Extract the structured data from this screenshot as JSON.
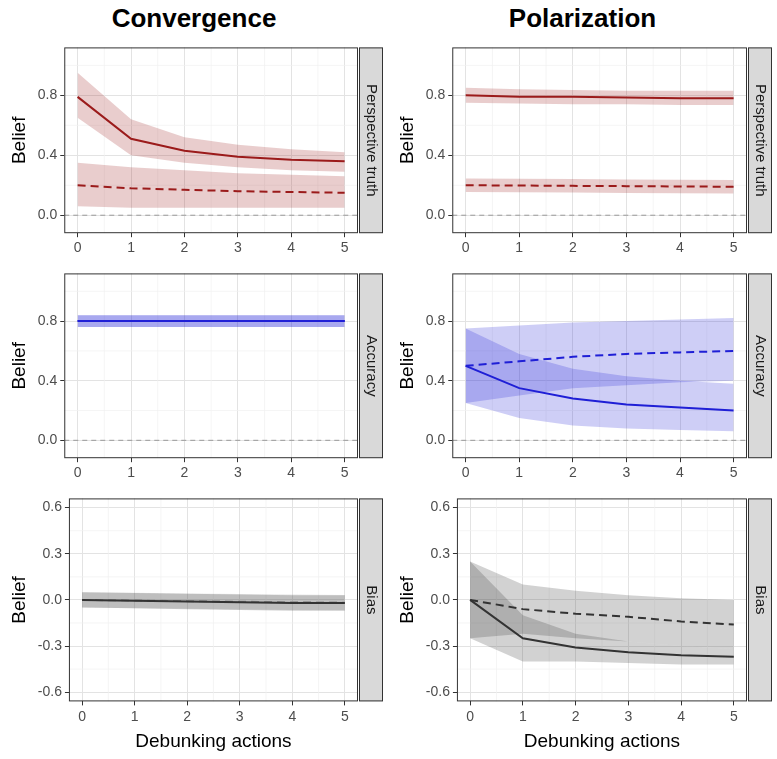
{
  "chart_data": [
    {
      "type": "line",
      "title": "Convergence",
      "strip": "Perspective truth",
      "y_label": "Belief",
      "x": [
        0,
        1,
        2,
        3,
        4,
        5
      ],
      "xlim": [
        -0.25,
        5.25
      ],
      "xticks": [
        0,
        1,
        2,
        3,
        4,
        5
      ],
      "ylim": [
        -0.12,
        1.12
      ],
      "yticks": [
        {
          "value": 0,
          "label": "0.0"
        },
        {
          "value": 0.4,
          "label": "0.4"
        },
        {
          "value": 0.8,
          "label": "0.8"
        }
      ],
      "hline": 0,
      "grid": true,
      "series": [
        {
          "color": "#9b1b1b",
          "line_style": "solid",
          "values": [
            0.79,
            0.51,
            0.43,
            0.39,
            0.37,
            0.36
          ],
          "lower": [
            0.65,
            0.4,
            0.35,
            0.32,
            0.3,
            0.29
          ],
          "upper": [
            0.95,
            0.64,
            0.52,
            0.47,
            0.44,
            0.42
          ]
        },
        {
          "color": "#9b1b1b",
          "line_style": "dashed",
          "values": [
            0.2,
            0.18,
            0.17,
            0.16,
            0.155,
            0.15
          ],
          "lower": [
            0.06,
            0.05,
            0.05,
            0.05,
            0.05,
            0.05
          ],
          "upper": [
            0.35,
            0.32,
            0.3,
            0.28,
            0.27,
            0.26
          ]
        }
      ]
    },
    {
      "type": "line",
      "title": "Polarization",
      "strip": "Perspective truth",
      "y_label": "Belief",
      "x": [
        0,
        1,
        2,
        3,
        4,
        5
      ],
      "xlim": [
        -0.25,
        5.25
      ],
      "xticks": [
        0,
        1,
        2,
        3,
        4,
        5
      ],
      "ylim": [
        -0.12,
        1.12
      ],
      "yticks": [
        {
          "value": 0,
          "label": "0.0"
        },
        {
          "value": 0.4,
          "label": "0.4"
        },
        {
          "value": 0.8,
          "label": "0.8"
        }
      ],
      "hline": 0,
      "grid": true,
      "series": [
        {
          "color": "#9b1b1b",
          "line_style": "solid",
          "values": [
            0.8,
            0.79,
            0.79,
            0.785,
            0.78,
            0.78
          ],
          "lower": [
            0.75,
            0.745,
            0.74,
            0.74,
            0.735,
            0.735
          ],
          "upper": [
            0.85,
            0.84,
            0.835,
            0.83,
            0.83,
            0.83
          ]
        },
        {
          "color": "#9b1b1b",
          "line_style": "dashed",
          "values": [
            0.2,
            0.198,
            0.196,
            0.194,
            0.192,
            0.19
          ],
          "lower": [
            0.155,
            0.153,
            0.151,
            0.149,
            0.147,
            0.145
          ],
          "upper": [
            0.245,
            0.243,
            0.241,
            0.239,
            0.237,
            0.235
          ]
        }
      ]
    },
    {
      "type": "line",
      "strip": "Accuracy",
      "y_label": "Belief",
      "x": [
        0,
        1,
        2,
        3,
        4,
        5
      ],
      "xlim": [
        -0.25,
        5.25
      ],
      "xticks": [
        0,
        1,
        2,
        3,
        4,
        5
      ],
      "ylim": [
        -0.12,
        1.12
      ],
      "yticks": [
        {
          "value": 0,
          "label": "0.0"
        },
        {
          "value": 0.4,
          "label": "0.4"
        },
        {
          "value": 0.8,
          "label": "0.8"
        }
      ],
      "hline": 0,
      "grid": true,
      "series": [
        {
          "color": "#1f1fd6",
          "line_style": "solid",
          "values": [
            0.8,
            0.8,
            0.8,
            0.8,
            0.8,
            0.8
          ],
          "lower": [
            0.76,
            0.76,
            0.76,
            0.76,
            0.76,
            0.76
          ],
          "upper": [
            0.84,
            0.84,
            0.84,
            0.84,
            0.84,
            0.84
          ]
        },
        {
          "color": "#1f1fd6",
          "line_style": "dashed",
          "values": [
            0.8,
            0.8,
            0.8,
            0.8,
            0.8,
            0.8
          ],
          "lower": [
            0.76,
            0.76,
            0.76,
            0.76,
            0.76,
            0.76
          ],
          "upper": [
            0.84,
            0.84,
            0.84,
            0.84,
            0.84,
            0.84
          ]
        }
      ]
    },
    {
      "type": "line",
      "strip": "Accuracy",
      "y_label": "Belief",
      "x": [
        0,
        1,
        2,
        3,
        4,
        5
      ],
      "xlim": [
        -0.25,
        5.25
      ],
      "xticks": [
        0,
        1,
        2,
        3,
        4,
        5
      ],
      "ylim": [
        -0.12,
        1.12
      ],
      "yticks": [
        {
          "value": 0,
          "label": "0.0"
        },
        {
          "value": 0.4,
          "label": "0.4"
        },
        {
          "value": 0.8,
          "label": "0.8"
        }
      ],
      "hline": 0,
      "grid": true,
      "series": [
        {
          "color": "#1f1fd6",
          "line_style": "solid",
          "values": [
            0.5,
            0.35,
            0.28,
            0.24,
            0.22,
            0.2
          ],
          "lower": [
            0.25,
            0.15,
            0.1,
            0.08,
            0.07,
            0.06
          ],
          "upper": [
            0.75,
            0.58,
            0.48,
            0.43,
            0.4,
            0.38
          ]
        },
        {
          "color": "#1f1fd6",
          "line_style": "dashed",
          "values": [
            0.5,
            0.53,
            0.56,
            0.58,
            0.59,
            0.6
          ],
          "lower": [
            0.25,
            0.3,
            0.35,
            0.37,
            0.39,
            0.4
          ],
          "upper": [
            0.75,
            0.77,
            0.79,
            0.8,
            0.81,
            0.82
          ]
        }
      ]
    },
    {
      "type": "line",
      "strip": "Bias",
      "y_label": "Belief",
      "x_label": "Debunking actions",
      "x": [
        0,
        1,
        2,
        3,
        4,
        5
      ],
      "xlim": [
        -0.25,
        5.25
      ],
      "xticks": [
        0,
        1,
        2,
        3,
        4,
        5
      ],
      "ylim": [
        -0.66,
        0.66
      ],
      "yticks": [
        -0.6,
        -0.3,
        {
          "value": 0,
          "label": "0.0"
        },
        0.3,
        0.6
      ],
      "grid": true,
      "series": [
        {
          "color": "#333333",
          "line_style": "solid",
          "values": [
            0.0,
            -0.005,
            -0.01,
            -0.015,
            -0.02,
            -0.02
          ],
          "lower": [
            -0.05,
            -0.055,
            -0.06,
            -0.065,
            -0.07,
            -0.07
          ],
          "upper": [
            0.05,
            0.045,
            0.04,
            0.035,
            0.03,
            0.03
          ]
        },
        {
          "color": "#888888",
          "line_style": "dashed",
          "values": [
            0.0,
            -0.004,
            -0.008,
            -0.012,
            -0.015,
            -0.018
          ],
          "lower": [
            -0.05,
            -0.054,
            -0.058,
            -0.062,
            -0.065,
            -0.068
          ],
          "upper": [
            0.05,
            0.046,
            0.042,
            0.038,
            0.035,
            0.032
          ]
        }
      ]
    },
    {
      "type": "line",
      "strip": "Bias",
      "y_label": "Belief",
      "x_label": "Debunking actions",
      "x": [
        0,
        1,
        2,
        3,
        4,
        5
      ],
      "xlim": [
        -0.25,
        5.25
      ],
      "xticks": [
        0,
        1,
        2,
        3,
        4,
        5
      ],
      "ylim": [
        -0.66,
        0.66
      ],
      "yticks": [
        -0.6,
        -0.3,
        {
          "value": 0,
          "label": "0.0"
        },
        0.3,
        0.6
      ],
      "grid": true,
      "series": [
        {
          "color": "#333333",
          "line_style": "solid",
          "values": [
            0.0,
            -0.25,
            -0.31,
            -0.34,
            -0.36,
            -0.37
          ],
          "lower": [
            -0.25,
            -0.4,
            -0.4,
            -0.41,
            -0.42,
            -0.42
          ],
          "upper": [
            0.25,
            -0.1,
            -0.22,
            -0.27,
            -0.3,
            -0.32
          ]
        },
        {
          "color": "#333333",
          "line_style": "dashed",
          "values": [
            0.0,
            -0.06,
            -0.09,
            -0.11,
            -0.14,
            -0.16
          ],
          "lower": [
            -0.25,
            -0.22,
            -0.25,
            -0.27,
            -0.3,
            -0.32
          ],
          "upper": [
            0.25,
            0.1,
            0.06,
            0.03,
            0.01,
            0.0
          ]
        }
      ]
    }
  ]
}
